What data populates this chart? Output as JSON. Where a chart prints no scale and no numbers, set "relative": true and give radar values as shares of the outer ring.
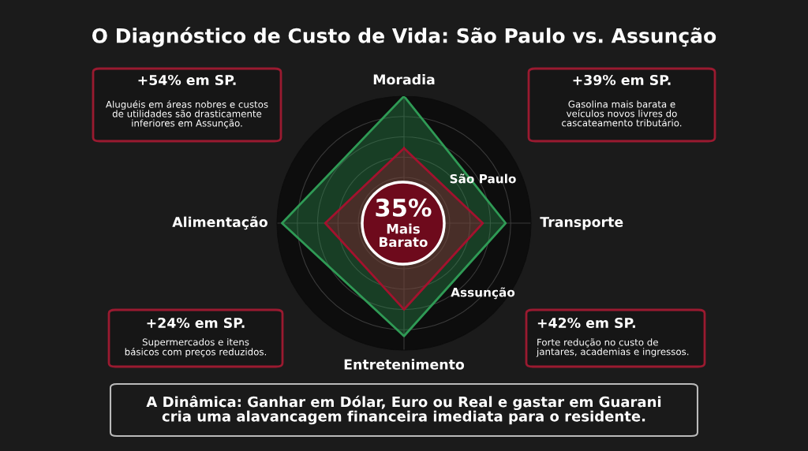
{
  "chart_data": {
    "type": "radar",
    "title": "O Diagnóstico de Custo de Vida: São Paulo vs. Assunção",
    "relative": true,
    "grid": true,
    "legend": false,
    "categories": [
      "Moradia",
      "Transporte",
      "Entretenimento",
      "Alimentação"
    ],
    "series": [
      {
        "name": "São Paulo",
        "color": "#2f9a55",
        "values": [
          1.0,
          0.8,
          0.89,
          0.96
        ]
      },
      {
        "name": "Assunção",
        "color": "#a3122e",
        "values": [
          0.59,
          0.62,
          0.68,
          0.62
        ]
      }
    ],
    "annotations": [
      "35%",
      "Mais\nBarato",
      "+54% em SP.",
      "Aluguéis em áreas nobres e custos\nde utilidades são drasticamente\ninferiores em Assunção.",
      "+39% em SP.",
      "Gasolina mais barata e\nveículos novos livres do\ncascateamento tributário.",
      "+24% em SP.",
      "Supermercados e itens\nbásicos com preços reduzidos.",
      "+42% em SP.",
      "Forte redução no custo de\njantares, academias e ingressos.",
      "A Dinâmica: Ganhar em Dólar, Euro ou Real e gastar em Guarani\ncria uma alavancagem financeira imediata para o residente."
    ]
  }
}
